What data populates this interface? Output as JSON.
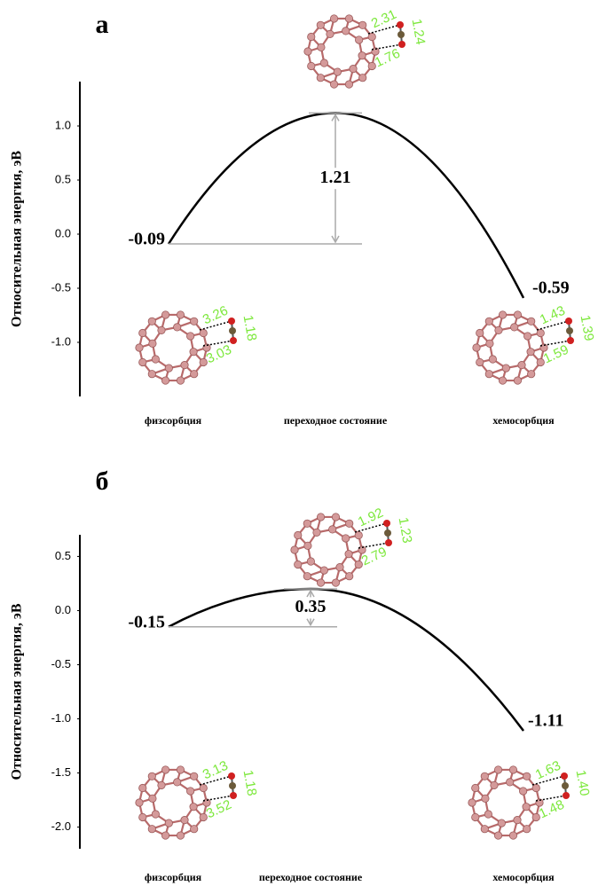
{
  "chart_data": [
    {
      "type": "line",
      "panel": "а",
      "y_label": "Относительная энергия, эВ",
      "categories": [
        "физсорбция",
        "переходное состояние",
        "хемосорбция"
      ],
      "values": [
        -0.09,
        1.12,
        -0.59
      ],
      "barrier": 1.21,
      "color": "#000000",
      "ylim": [
        -1.5,
        1.41
      ],
      "yticks": [
        {
          "value": -1.0,
          "label": "-1.0"
        },
        {
          "value": -0.5,
          "label": "-0.5"
        },
        {
          "value": 0.0,
          "label": "0.0"
        },
        {
          "value": 0.5,
          "label": "0.5"
        },
        {
          "value": 1.0,
          "label": "1.0"
        }
      ],
      "structures": [
        {
          "bond_lengths": [
            "3.26",
            "1.18",
            "3.03"
          ]
        },
        {
          "bond_lengths": [
            "2.31",
            "1.24",
            "1.76"
          ]
        },
        {
          "bond_lengths": [
            "1.43",
            "1.39",
            "1.59"
          ]
        }
      ]
    },
    {
      "type": "line",
      "panel": "б",
      "y_label": "Относительная энергия, эВ",
      "categories": [
        "физсорбция",
        "переходное состояние",
        "хемосорбция"
      ],
      "values": [
        -0.15,
        0.2,
        -1.11
      ],
      "barrier": 0.35,
      "color": "#000000",
      "ylim": [
        -2.2,
        0.7
      ],
      "yticks": [
        {
          "value": -2.0,
          "label": "-2.0"
        },
        {
          "value": -1.5,
          "label": "-1.5"
        },
        {
          "value": -1.0,
          "label": "-1.0"
        },
        {
          "value": -0.5,
          "label": "-0.5"
        },
        {
          "value": 0.0,
          "label": "0.0"
        },
        {
          "value": 0.5,
          "label": "0.5"
        }
      ],
      "structures": [
        {
          "bond_lengths": [
            "3.13",
            "1.18",
            "3.52"
          ]
        },
        {
          "bond_lengths": [
            "1.92",
            "1.23",
            "2.79"
          ]
        },
        {
          "bond_lengths": [
            "1.63",
            "1.40",
            "1.48"
          ]
        }
      ]
    }
  ]
}
